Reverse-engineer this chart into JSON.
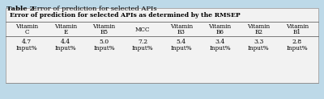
{
  "title_bold": "Table 2",
  "title_normal": " Error of prediction for selected APIs",
  "table_header": "Error of prediction for selected APIs as determined by the RMSEP",
  "col_headers": [
    [
      "Vitamin",
      "C"
    ],
    [
      "Vitamin",
      "E"
    ],
    [
      "Vitamin",
      "B5"
    ],
    [
      "MCC",
      ""
    ],
    [
      "Vitamin",
      "B3"
    ],
    [
      "Vitamin",
      "B6"
    ],
    [
      "Vitamin",
      "B2"
    ],
    [
      "Vitamin",
      "B1"
    ]
  ],
  "values": [
    "4.7",
    "4.4",
    "5.0",
    "7.2",
    "5.4",
    "3.4",
    "3.3",
    "2.8"
  ],
  "unit": "Input%",
  "background_color": "#bdd9e8",
  "table_bg": "#efefef",
  "border_color": "#999999"
}
